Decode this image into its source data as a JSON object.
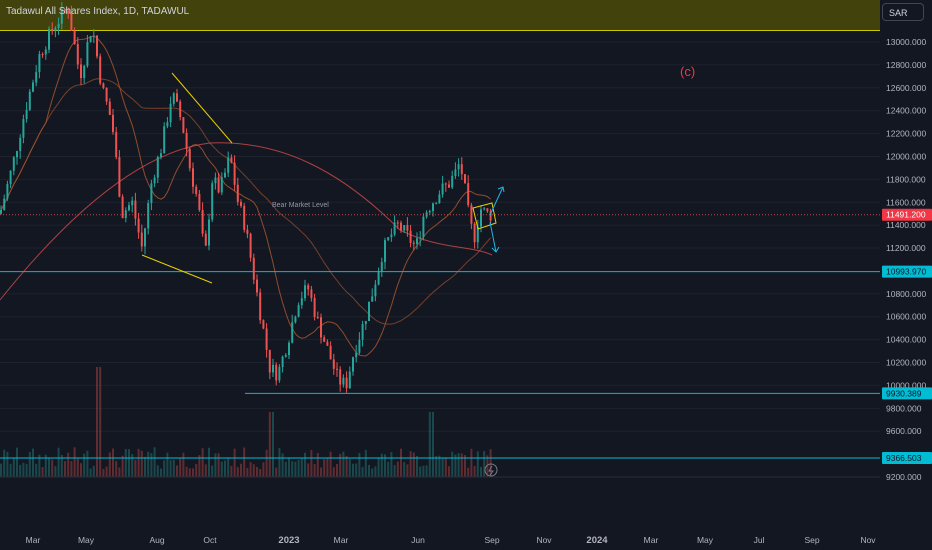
{
  "header": {
    "symbol_title": "Tadawul All Shares Index, 1D, TADAWUL",
    "currency_button": "SAR"
  },
  "annotations": {
    "wave_label": "(c)",
    "bear_market_label": "Bear Market Level"
  },
  "colors": {
    "background": "#131722",
    "up": "#26a69a",
    "down": "#ef5350",
    "zone_fill": "#4a4a08",
    "zone_border": "#c8c800",
    "trendline": "#e8d000",
    "support_line": "#00bcd4",
    "ma_line": "#a0522d",
    "arrow": "#22b5e0"
  },
  "chart_data": {
    "type": "candlestick",
    "title": "Tadawul All Shares Index, 1D, TADAWUL",
    "y_axis": {
      "min": 9060,
      "max": 13400,
      "ticks": [
        "13000.000",
        "12800.000",
        "12600.000",
        "12400.000",
        "12200.000",
        "12000.000",
        "11800.000",
        "11600.000",
        "11400.000",
        "11200.000",
        "10800.000",
        "10600.000",
        "10400.000",
        "10200.000",
        "10000.000",
        "9800.000",
        "9600.000",
        "9200.000"
      ]
    },
    "x_axis": {
      "ticks": [
        "Mar",
        "May",
        "Aug",
        "Oct",
        "2023",
        "Mar",
        "Jun",
        "Sep",
        "Nov",
        "2024",
        "Mar",
        "May",
        "Jul",
        "Sep",
        "Nov"
      ]
    },
    "price_tags": [
      {
        "label": "11491.200",
        "value": 11491.2,
        "color": "#f23645"
      },
      {
        "label": "10993.970",
        "value": 10993.97,
        "color": "#00bcd4"
      },
      {
        "label": "9930.389",
        "value": 9930.389,
        "color": "#00bcd4"
      },
      {
        "label": "9366.503",
        "value": 9366.503,
        "color": "#00bcd4"
      }
    ],
    "resistance_zone": [
      13100,
      13400
    ],
    "bear_market_level": 11491.2,
    "support_levels": [
      10993.97,
      9930.389,
      9366.503
    ],
    "lower_line": 9200,
    "price_path": [
      [
        0,
        11500
      ],
      [
        12,
        11900
      ],
      [
        25,
        12400
      ],
      [
        40,
        12900
      ],
      [
        55,
        13150
      ],
      [
        68,
        13300
      ],
      [
        80,
        12700
      ],
      [
        92,
        13150
      ],
      [
        102,
        12600
      ],
      [
        112,
        12300
      ],
      [
        122,
        11500
      ],
      [
        132,
        11600
      ],
      [
        142,
        11200
      ],
      [
        152,
        11800
      ],
      [
        162,
        12100
      ],
      [
        172,
        12550
      ],
      [
        182,
        12300
      ],
      [
        190,
        11900
      ],
      [
        198,
        11600
      ],
      [
        205,
        11100
      ],
      [
        212,
        11800
      ],
      [
        220,
        11700
      ],
      [
        230,
        12000
      ],
      [
        238,
        11600
      ],
      [
        245,
        11400
      ],
      [
        255,
        10900
      ],
      [
        263,
        10500
      ],
      [
        270,
        10150
      ],
      [
        278,
        10100
      ],
      [
        288,
        10400
      ],
      [
        298,
        10750
      ],
      [
        308,
        10850
      ],
      [
        318,
        10550
      ],
      [
        328,
        10300
      ],
      [
        338,
        10050
      ],
      [
        346,
        10000
      ],
      [
        354,
        10300
      ],
      [
        362,
        10500
      ],
      [
        372,
        10800
      ],
      [
        382,
        11150
      ],
      [
        390,
        11300
      ],
      [
        398,
        11400
      ],
      [
        408,
        11300
      ],
      [
        416,
        11200
      ],
      [
        424,
        11500
      ],
      [
        432,
        11600
      ],
      [
        440,
        11700
      ],
      [
        448,
        11750
      ],
      [
        455,
        11850
      ],
      [
        460,
        11950
      ],
      [
        465,
        11700
      ],
      [
        470,
        11400
      ],
      [
        475,
        11300
      ],
      [
        480,
        11550
      ],
      [
        486,
        11500
      ],
      [
        492,
        11491
      ]
    ],
    "volume_levels": [
      0.25,
      0.5
    ]
  }
}
